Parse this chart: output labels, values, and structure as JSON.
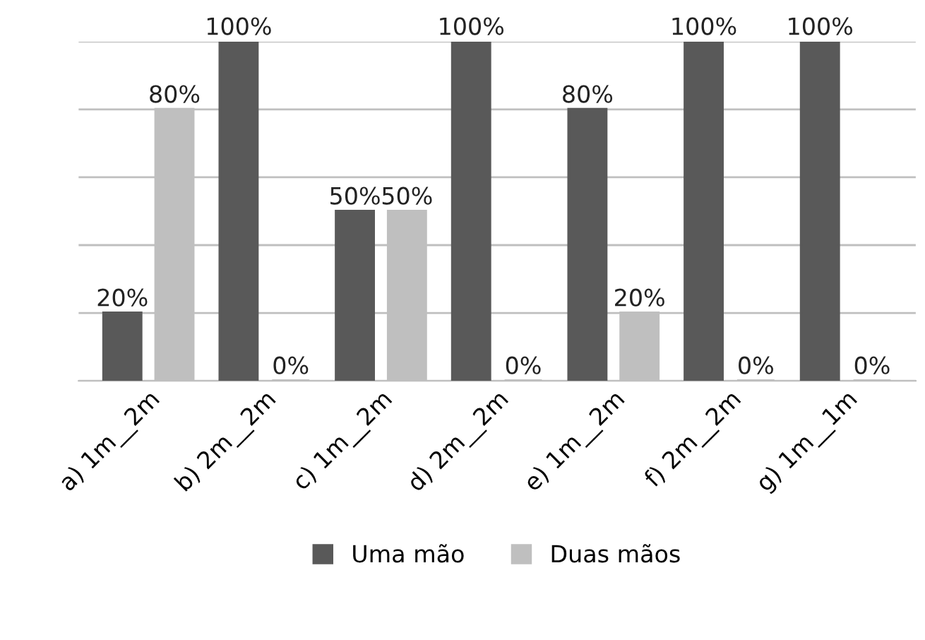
{
  "chart_data": {
    "type": "bar",
    "categories": [
      "a) 1m__2m",
      "b) 2m__2m",
      "c) 1m__2m",
      "d) 2m__2m",
      "e) 1m__2m",
      "f) 2m__2m",
      "g) 1m__1m"
    ],
    "series": [
      {
        "name": "Uma mão",
        "color": "#595959",
        "values": [
          20,
          100,
          50,
          100,
          80,
          100,
          100
        ],
        "value_labels": [
          "20%",
          "100%",
          "50%",
          "100%",
          "80%",
          "100%",
          "100%"
        ]
      },
      {
        "name": "Duas mãos",
        "color": "#bfbfbf",
        "values": [
          80,
          0,
          50,
          0,
          20,
          0,
          0
        ],
        "value_labels": [
          "80%",
          "0%",
          "50%",
          "0%",
          "20%",
          "0%",
          "0%"
        ]
      }
    ],
    "ylim": [
      0,
      100
    ],
    "yticks": [
      {
        "value": 0,
        "label": null
      },
      {
        "value": 20,
        "label": null
      },
      {
        "value": 40,
        "label": null
      },
      {
        "value": 60,
        "label": null
      },
      {
        "value": 80,
        "label": null
      },
      {
        "value": 100,
        "label": null
      }
    ],
    "grid": "y",
    "legend": "bottom",
    "tick_labels": "x"
  }
}
